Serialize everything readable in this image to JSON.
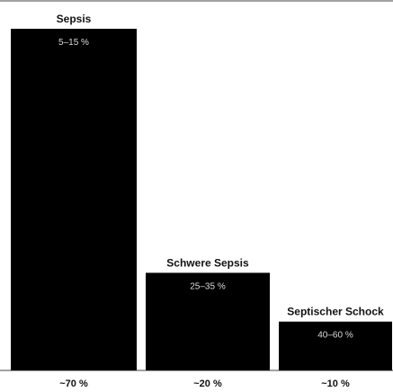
{
  "chart_data": {
    "type": "bar",
    "categories": [
      "Sepsis",
      "Schwere Sepsis",
      "Septischer Schock"
    ],
    "values": [
      70,
      20,
      10
    ],
    "bar_labels": [
      "5–15 %",
      "25–35 %",
      "40–60 %"
    ],
    "share_labels": [
      "~70 %",
      "~20 %",
      "~10 %"
    ],
    "ylim": [
      0,
      70
    ],
    "grid": false,
    "legend": "none",
    "bar_color": "#000000"
  }
}
